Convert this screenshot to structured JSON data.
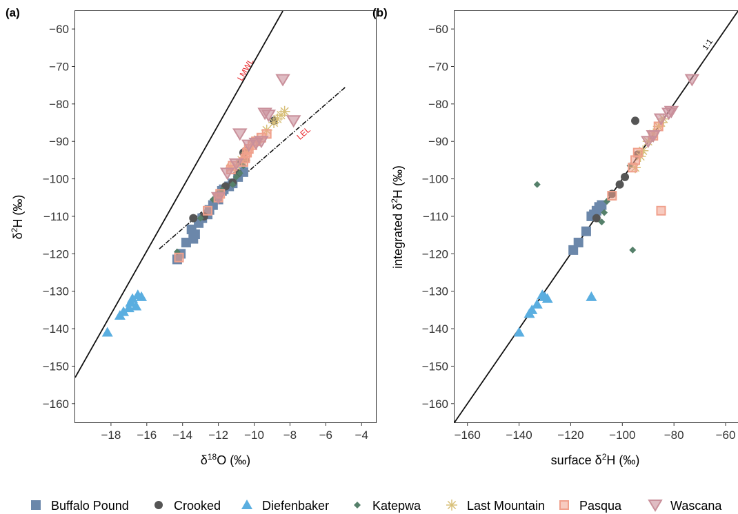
{
  "panels": [
    {
      "label": "(a)",
      "xlabel_prefix": "δ",
      "xlabel_sup": "18",
      "xlabel_suffix": "O (‰)",
      "ylabel_prefix": "δ",
      "ylabel_sup": "2",
      "ylabel_suffix": "H (‰)"
    },
    {
      "label": "(b)",
      "xlabel_prefix": "surface δ",
      "xlabel_sup": "2",
      "xlabel_suffix": "H (‰)",
      "ylabel_prefix": "integrated δ",
      "ylabel_sup": "2",
      "ylabel_suffix": "H (‰)"
    }
  ],
  "legend": [
    {
      "name": "Buffalo Pound",
      "marker": "square"
    },
    {
      "name": "Crooked",
      "marker": "circle"
    },
    {
      "name": "Diefenbaker",
      "marker": "triangle-up"
    },
    {
      "name": "Katepwa",
      "marker": "diamond"
    },
    {
      "name": "Last Mountain",
      "marker": "asterisk"
    },
    {
      "name": "Pasqua",
      "marker": "square-open"
    },
    {
      "name": "Wascana",
      "marker": "triangle-down"
    }
  ],
  "colors": {
    "Buffalo Pound": "#6b87aa",
    "Crooked": "#555555",
    "Diefenbaker": "#5aaee0",
    "Katepwa": "#55806a",
    "Last Mountain": "#d8c07a",
    "Pasqua": "#f0a08c",
    "Wascana": "#c9909b",
    "line_label": "#e8262a"
  },
  "chart_data": [
    {
      "type": "scatter",
      "xlim": [
        -20,
        -3.2
      ],
      "ylim": [
        -165,
        -55.2
      ],
      "xticks": [
        -18,
        -16,
        -14,
        -12,
        -10,
        -8,
        -6,
        -4
      ],
      "yticks": [
        -160,
        -150,
        -140,
        -130,
        -120,
        -110,
        -100,
        -90,
        -80,
        -70,
        -60
      ],
      "grid": false,
      "lines": [
        {
          "name": "LMWL",
          "style": "solid",
          "x": [
            -20,
            -8.4
          ],
          "y": [
            -153,
            -55.2
          ]
        },
        {
          "name": "LEL",
          "style": "dashdot",
          "x": [
            -15.3,
            -4.9
          ],
          "y": [
            -118.7,
            -75.5
          ]
        }
      ],
      "series": [
        {
          "name": "Buffalo Pound",
          "points": [
            [
              -14.3,
              -121.5
            ],
            [
              -14.1,
              -120
            ],
            [
              -13.8,
              -117
            ],
            [
              -13.4,
              -116
            ],
            [
              -13.3,
              -114.8
            ],
            [
              -13.5,
              -113.5
            ],
            [
              -13.1,
              -111.8
            ],
            [
              -12.9,
              -110.5
            ],
            [
              -12.6,
              -109.5
            ],
            [
              -12.5,
              -108.3
            ],
            [
              -12.3,
              -107
            ],
            [
              -12.0,
              -105.5
            ],
            [
              -11.8,
              -103.2
            ],
            [
              -11.7,
              -102.8
            ],
            [
              -11.4,
              -102
            ],
            [
              -11.2,
              -101.2
            ],
            [
              -10.9,
              -99.5
            ],
            [
              -10.6,
              -98.2
            ]
          ]
        },
        {
          "name": "Crooked",
          "points": [
            [
              -13.4,
              -110.5
            ],
            [
              -12.8,
              -110
            ],
            [
              -11.6,
              -102
            ],
            [
              -11.2,
              -101
            ],
            [
              -10.9,
              -98.5
            ],
            [
              -10.7,
              -95.5
            ],
            [
              -10.6,
              -93
            ],
            [
              -10.5,
              -92.6
            ],
            [
              -8.9,
              -84.5
            ]
          ]
        },
        {
          "name": "Diefenbaker",
          "points": [
            [
              -18.2,
              -141
            ],
            [
              -17.5,
              -136.5
            ],
            [
              -17.3,
              -135.5
            ],
            [
              -17.0,
              -134.5
            ],
            [
              -16.9,
              -133
            ],
            [
              -16.6,
              -134
            ],
            [
              -16.8,
              -132
            ],
            [
              -16.5,
              -131
            ],
            [
              -16.3,
              -131.5
            ]
          ]
        },
        {
          "name": "Katepwa",
          "points": [
            [
              -14.3,
              -119.5
            ],
            [
              -13.0,
              -110.5
            ],
            [
              -12.3,
              -105.5
            ],
            [
              -12.1,
              -104
            ],
            [
              -11.8,
              -103
            ],
            [
              -11.2,
              -101.5
            ],
            [
              -11.0,
              -99.5
            ],
            [
              -10.8,
              -98.5
            ],
            [
              -10.6,
              -96.5
            ],
            [
              -10.4,
              -95
            ]
          ]
        },
        {
          "name": "Last Mountain",
          "points": [
            [
              -11.3,
              -97
            ],
            [
              -11.0,
              -96.5
            ],
            [
              -10.7,
              -95
            ],
            [
              -10.4,
              -93
            ],
            [
              -10.1,
              -91
            ],
            [
              -9.8,
              -89.5
            ],
            [
              -9.3,
              -87
            ],
            [
              -8.9,
              -85
            ],
            [
              -8.7,
              -84
            ],
            [
              -8.5,
              -83
            ],
            [
              -8.3,
              -82
            ]
          ]
        },
        {
          "name": "Pasqua",
          "points": [
            [
              -14.2,
              -121
            ],
            [
              -12.6,
              -108.5
            ],
            [
              -12.0,
              -105
            ],
            [
              -11.9,
              -104
            ],
            [
              -11.3,
              -97.5
            ],
            [
              -11.2,
              -96.5
            ],
            [
              -10.6,
              -95.5
            ],
            [
              -10.5,
              -94.5
            ],
            [
              -10.4,
              -93
            ],
            [
              -10.3,
              -92
            ],
            [
              -10.1,
              -91
            ],
            [
              -9.9,
              -90
            ],
            [
              -9.6,
              -89
            ],
            [
              -9.3,
              -88
            ]
          ]
        },
        {
          "name": "Wascana",
          "points": [
            [
              -12.0,
              -105
            ],
            [
              -11.5,
              -98.5
            ],
            [
              -11.0,
              -96
            ],
            [
              -10.8,
              -88
            ],
            [
              -10.3,
              -91
            ],
            [
              -9.9,
              -90.5
            ],
            [
              -9.6,
              -90
            ],
            [
              -9.4,
              -82.5
            ],
            [
              -9.2,
              -83
            ],
            [
              -7.8,
              -84.5
            ],
            [
              -8.4,
              -73.5
            ]
          ]
        }
      ]
    },
    {
      "type": "scatter",
      "xlim": [
        -165,
        -55.2
      ],
      "ylim": [
        -165,
        -55.2
      ],
      "xticks": [
        -160,
        -140,
        -120,
        -100,
        -80,
        -60
      ],
      "yticks": [
        -160,
        -150,
        -140,
        -130,
        -120,
        -110,
        -100,
        -90,
        -80,
        -70,
        -60
      ],
      "grid": false,
      "lines": [
        {
          "name": "1:1",
          "style": "solid",
          "x": [
            -165,
            -55.2
          ],
          "y": [
            -165,
            -55.2
          ]
        }
      ],
      "series": [
        {
          "name": "Buffalo Pound",
          "points": [
            [
              -119,
              -119
            ],
            [
              -117,
              -117
            ],
            [
              -114,
              -114
            ],
            [
              -112,
              -110
            ],
            [
              -111,
              -109.5
            ],
            [
              -110,
              -108.5
            ],
            [
              -109,
              -107.5
            ],
            [
              -108,
              -107
            ]
          ]
        },
        {
          "name": "Crooked",
          "points": [
            [
              -110,
              -110.5
            ],
            [
              -104,
              -104
            ],
            [
              -101,
              -101.5
            ],
            [
              -99,
              -99.5
            ],
            [
              -95,
              -84.5
            ],
            [
              -94,
              -93.5
            ]
          ]
        },
        {
          "name": "Diefenbaker",
          "points": [
            [
              -140,
              -141
            ],
            [
              -136,
              -136
            ],
            [
              -135,
              -135
            ],
            [
              -133,
              -133.5
            ],
            [
              -131,
              -131
            ],
            [
              -130,
              -131.5
            ],
            [
              -129,
              -132
            ],
            [
              -112,
              -131.5
            ]
          ]
        },
        {
          "name": "Katepwa",
          "points": [
            [
              -133,
              -101.5
            ],
            [
              -108,
              -111.5
            ],
            [
              -107,
              -109
            ],
            [
              -106,
              -106
            ],
            [
              -96,
              -119
            ],
            [
              -97,
              -96.5
            ]
          ]
        },
        {
          "name": "Last Mountain",
          "points": [
            [
              -95,
              -97
            ],
            [
              -93,
              -94
            ],
            [
              -92,
              -92.5
            ],
            [
              -90,
              -90
            ],
            [
              -88,
              -88
            ],
            [
              -86,
              -86
            ],
            [
              -85,
              -85
            ],
            [
              -84,
              -84
            ]
          ]
        },
        {
          "name": "Pasqua",
          "points": [
            [
              -104,
              -104.5
            ],
            [
              -96,
              -97
            ],
            [
              -95,
              -95
            ],
            [
              -94,
              -93
            ],
            [
              -85,
              -108.5
            ],
            [
              -88,
              -88.5
            ],
            [
              -86,
              -86
            ]
          ]
        },
        {
          "name": "Wascana",
          "points": [
            [
              -90,
              -90
            ],
            [
              -88,
              -88.5
            ],
            [
              -85,
              -84
            ],
            [
              -82,
              -82.5
            ],
            [
              -81,
              -82
            ],
            [
              -73,
              -73.5
            ]
          ]
        }
      ]
    }
  ]
}
